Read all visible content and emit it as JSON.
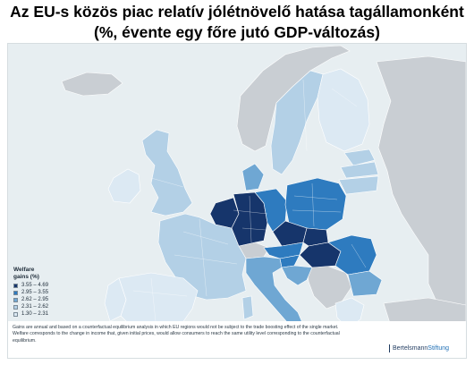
{
  "title": {
    "line1": "Az EU-s közös piac relatív jólétnövelő hatása tagállamonként",
    "line2": "(%, évente egy főre jutó GDP-változás)"
  },
  "legend": {
    "title": "Welfare\ngains (%)",
    "items": [
      {
        "label": "3.55 – 4.69",
        "color": "#16356b"
      },
      {
        "label": "2.95 – 3.55",
        "color": "#2e7bbf"
      },
      {
        "label": "2.62 – 2.95",
        "color": "#6fa7d3"
      },
      {
        "label": "2.31 – 2.62",
        "color": "#b3d0e6"
      },
      {
        "label": "1.30 – 2.31",
        "color": "#dce9f3"
      }
    ]
  },
  "colors": {
    "non_eu_land": "#c9ced3",
    "sea": "#e7eef1",
    "border": "#ffffff"
  },
  "footnote": "Gains are annual and based on a counterfactual equilibrium analysis in which EU regions would not be subject to the trade boosting effect of the single market. Welfare corresponds to the change in income that, given initial prices, would allow consumers to reach the same utility level corresponding to the counterfactual equilibrium.",
  "brand": {
    "part1": "Bertelsmann",
    "part2": "Stiftung"
  }
}
